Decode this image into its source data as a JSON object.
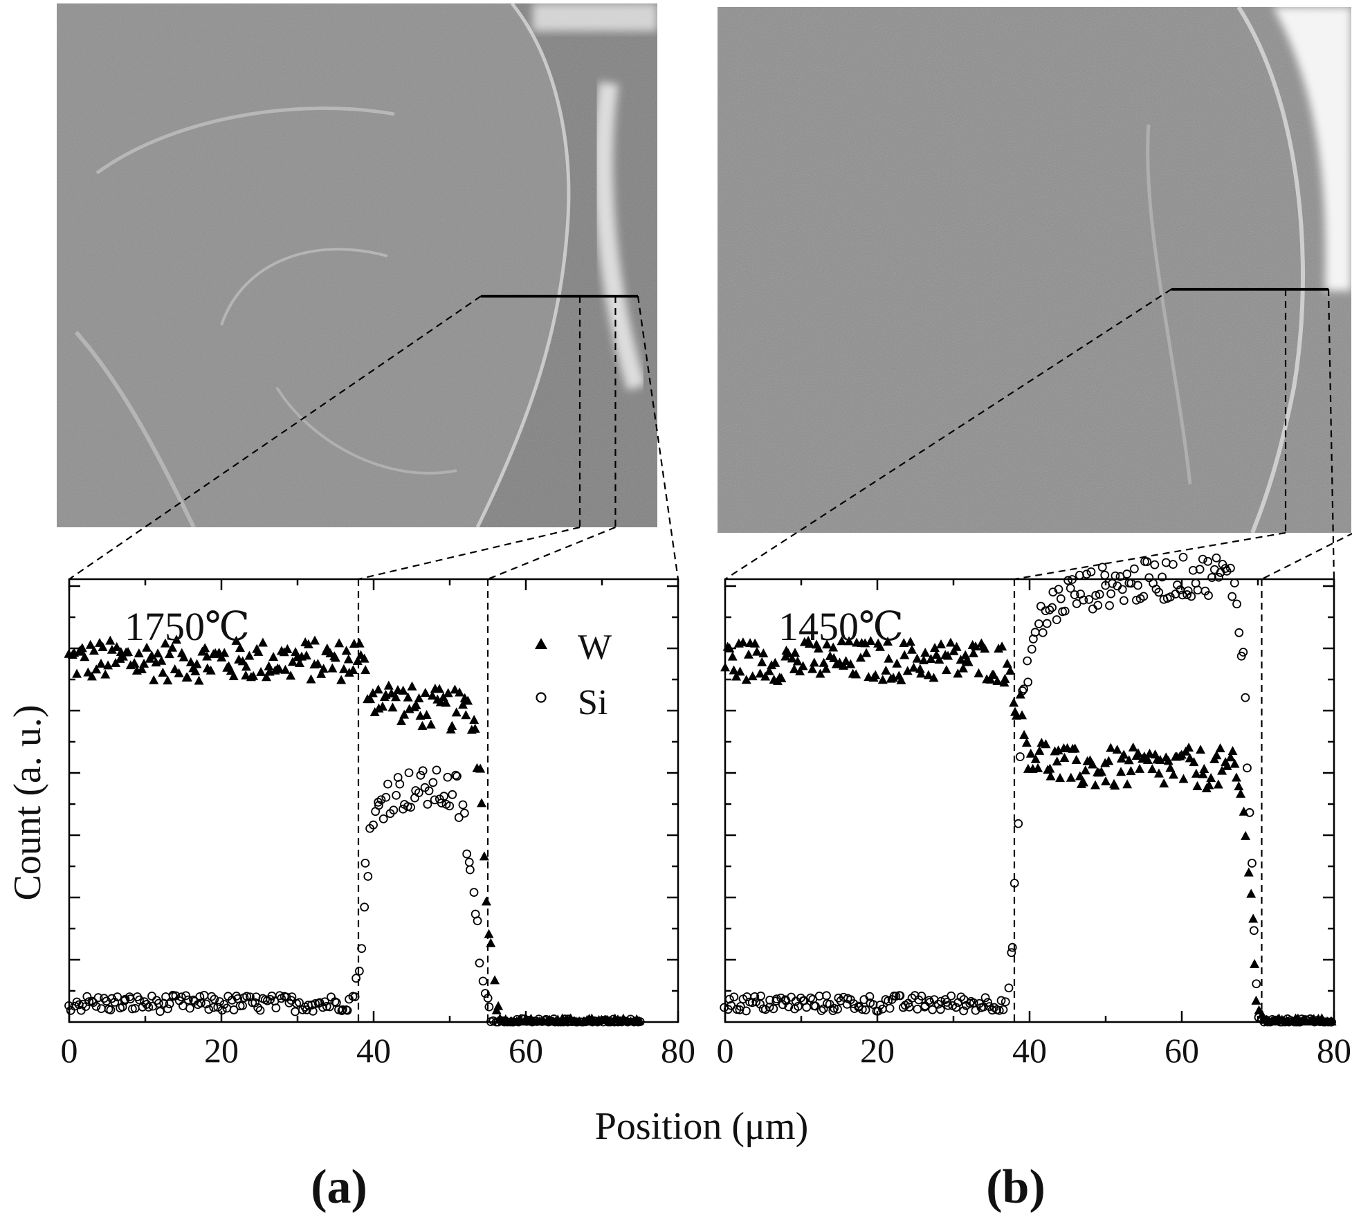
{
  "figure": {
    "ylabel": "Count (a. u.)",
    "xlabel": "Position (μm)"
  },
  "chart_data": [
    {
      "type": "scatter",
      "panel_label": "(a)",
      "annotation": "1750℃",
      "xlim": [
        0,
        80
      ],
      "x_ticks": [
        "0",
        "20",
        "40",
        "60",
        "80"
      ],
      "y_ticks": [],
      "grid": false,
      "legend_position": "top-right",
      "interfaces_um": [
        38,
        55
      ],
      "series": [
        {
          "name": "W",
          "marker": "filled-triangle",
          "values": [
            [
              0,
              0.87
            ],
            [
              5,
              0.87
            ],
            [
              10,
              0.87
            ],
            [
              15,
              0.87
            ],
            [
              20,
              0.87
            ],
            [
              25,
              0.87
            ],
            [
              30,
              0.87
            ],
            [
              35,
              0.87
            ],
            [
              37,
              0.87
            ],
            [
              38,
              0.89
            ],
            [
              39,
              0.82
            ],
            [
              40,
              0.79
            ],
            [
              45,
              0.76
            ],
            [
              50,
              0.75
            ],
            [
              53,
              0.75
            ],
            [
              54,
              0.6
            ],
            [
              55,
              0.3
            ],
            [
              56,
              0.05
            ],
            [
              57,
              0.0
            ],
            [
              60,
              0.0
            ],
            [
              65,
              0.0
            ],
            [
              70,
              0.0
            ],
            [
              75,
              0.0
            ]
          ]
        },
        {
          "name": "Si",
          "marker": "open-circle",
          "values": [
            [
              0,
              0.045
            ],
            [
              5,
              0.045
            ],
            [
              10,
              0.045
            ],
            [
              15,
              0.045
            ],
            [
              20,
              0.045
            ],
            [
              25,
              0.045
            ],
            [
              30,
              0.045
            ],
            [
              35,
              0.045
            ],
            [
              37,
              0.048
            ],
            [
              38,
              0.1
            ],
            [
              38.5,
              0.22
            ],
            [
              39,
              0.36
            ],
            [
              40,
              0.48
            ],
            [
              41,
              0.53
            ],
            [
              42,
              0.55
            ],
            [
              45,
              0.56
            ],
            [
              48,
              0.56
            ],
            [
              51,
              0.55
            ],
            [
              52,
              0.46
            ],
            [
              53,
              0.32
            ],
            [
              54,
              0.15
            ],
            [
              55,
              0.04
            ],
            [
              56,
              0.0
            ],
            [
              60,
              0.0
            ],
            [
              65,
              0.0
            ],
            [
              70,
              0.0
            ],
            [
              75,
              0.0
            ]
          ]
        }
      ]
    },
    {
      "type": "scatter",
      "panel_label": "(b)",
      "annotation": "1450℃",
      "xlim": [
        0,
        80
      ],
      "x_ticks": [
        "0",
        "20",
        "40",
        "60",
        "80"
      ],
      "y_ticks": [],
      "grid": false,
      "interfaces_um": [
        38,
        70.5
      ],
      "series": [
        {
          "name": "W",
          "marker": "filled-triangle",
          "values": [
            [
              0,
              0.87
            ],
            [
              5,
              0.87
            ],
            [
              10,
              0.87
            ],
            [
              15,
              0.87
            ],
            [
              20,
              0.87
            ],
            [
              25,
              0.87
            ],
            [
              30,
              0.87
            ],
            [
              35,
              0.87
            ],
            [
              37,
              0.86
            ],
            [
              38,
              0.8
            ],
            [
              39,
              0.72
            ],
            [
              40,
              0.65
            ],
            [
              45,
              0.61
            ],
            [
              50,
              0.61
            ],
            [
              55,
              0.61
            ],
            [
              60,
              0.61
            ],
            [
              65,
              0.61
            ],
            [
              67,
              0.6
            ],
            [
              68,
              0.52
            ],
            [
              69,
              0.32
            ],
            [
              69.5,
              0.15
            ],
            [
              70,
              0.05
            ],
            [
              71,
              0.0
            ],
            [
              75,
              0.0
            ],
            [
              80,
              0.0
            ]
          ]
        },
        {
          "name": "Si",
          "marker": "open-circle",
          "values": [
            [
              0,
              0.045
            ],
            [
              5,
              0.045
            ],
            [
              10,
              0.045
            ],
            [
              15,
              0.045
            ],
            [
              20,
              0.045
            ],
            [
              25,
              0.045
            ],
            [
              30,
              0.045
            ],
            [
              35,
              0.045
            ],
            [
              37,
              0.05
            ],
            [
              38,
              0.25
            ],
            [
              38.5,
              0.55
            ],
            [
              39,
              0.75
            ],
            [
              40,
              0.88
            ],
            [
              41,
              0.95
            ],
            [
              43,
              1.0
            ],
            [
              45,
              1.03
            ],
            [
              50,
              1.05
            ],
            [
              55,
              1.06
            ],
            [
              60,
              1.07
            ],
            [
              65,
              1.08
            ],
            [
              67,
              1.05
            ],
            [
              68,
              0.9
            ],
            [
              68.5,
              0.72
            ],
            [
              69,
              0.5
            ],
            [
              69.5,
              0.3
            ],
            [
              70,
              0.02
            ],
            [
              71,
              0.0
            ],
            [
              75,
              0.0
            ],
            [
              80,
              0.0
            ]
          ]
        }
      ]
    }
  ]
}
